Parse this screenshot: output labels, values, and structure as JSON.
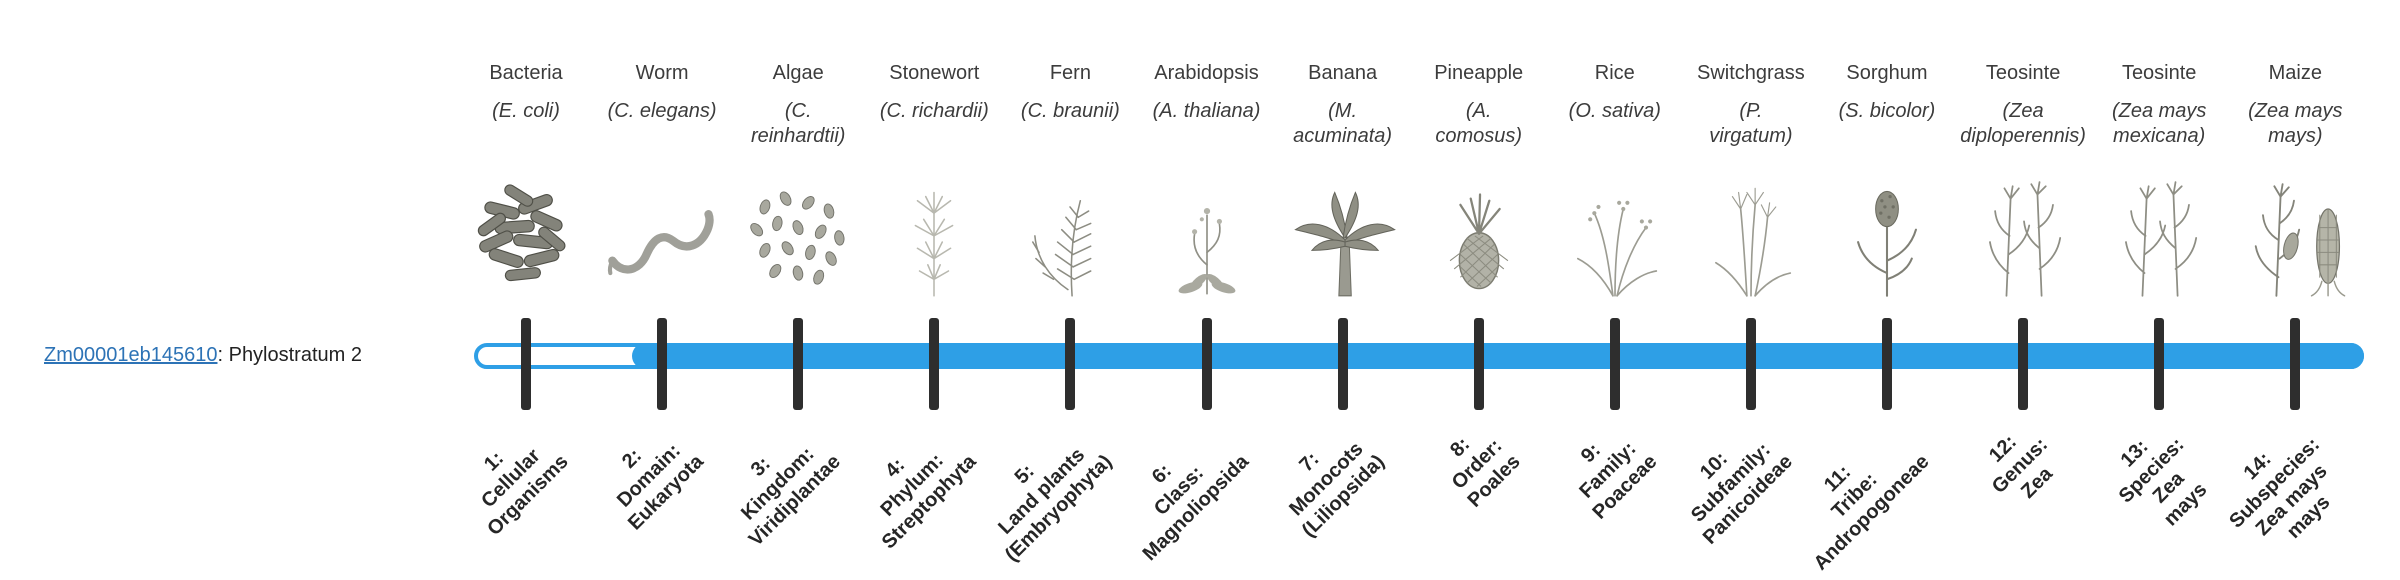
{
  "gene": {
    "id": "Zm00001eb145610",
    "suffix": ": Phylostratum 2",
    "phylostratum": 2
  },
  "timeline": {
    "bar_color": "#2E9FE6",
    "tick_color": "#2e2e2e",
    "filled_from_stratum": 2,
    "strata": [
      {
        "index": 1,
        "common_name": "Bacteria",
        "latin_name": "(E. coli)",
        "icon": "bacteria-icon",
        "stratum_label": "1:\nCellular\nOrganisms"
      },
      {
        "index": 2,
        "common_name": "Worm",
        "latin_name": "(C. elegans)",
        "icon": "worm-icon",
        "stratum_label": "2:\nDomain:\nEukaryota"
      },
      {
        "index": 3,
        "common_name": "Algae",
        "latin_name": "(C.\nreinhardtii)",
        "icon": "algae-icon",
        "stratum_label": "3:\nKingdom:\nViridiplantae"
      },
      {
        "index": 4,
        "common_name": "Stonewort",
        "latin_name": "(C. richardii)",
        "icon": "stonewort-icon",
        "stratum_label": "4:\nPhylum:\nStreptophyta"
      },
      {
        "index": 5,
        "common_name": "Fern",
        "latin_name": "(C. braunii)",
        "icon": "fern-icon",
        "stratum_label": "5:\nLand plants\n(Embryophyta)"
      },
      {
        "index": 6,
        "common_name": "Arabidopsis",
        "latin_name": "(A. thaliana)",
        "icon": "arabidopsis-icon",
        "stratum_label": "6:\nClass:\nMagnoliopsida"
      },
      {
        "index": 7,
        "common_name": "Banana",
        "latin_name": "(M.\nacuminata)",
        "icon": "banana-icon",
        "stratum_label": "7:\nMonocots\n(Liliopsida)"
      },
      {
        "index": 8,
        "common_name": "Pineapple",
        "latin_name": "(A.\ncomosus)",
        "icon": "pineapple-icon",
        "stratum_label": "8:\nOrder:\nPoales"
      },
      {
        "index": 9,
        "common_name": "Rice",
        "latin_name": "(O. sativa)",
        "icon": "rice-icon",
        "stratum_label": "9:\nFamily:\nPoaceae"
      },
      {
        "index": 10,
        "common_name": "Switchgrass",
        "latin_name": "(P.\nvirgatum)",
        "icon": "switchgrass-icon",
        "stratum_label": "10:\nSubfamily:\nPanicoideae"
      },
      {
        "index": 11,
        "common_name": "Sorghum",
        "latin_name": "(S. bicolor)",
        "icon": "sorghum-icon",
        "stratum_label": "11:\nTribe:\nAndropogoneae"
      },
      {
        "index": 12,
        "common_name": "Teosinte",
        "latin_name": "(Zea\ndiploperennis)",
        "icon": "teosinte-icon",
        "stratum_label": "12:\nGenus:\nZea"
      },
      {
        "index": 13,
        "common_name": "Teosinte",
        "latin_name": "(Zea mays\nmexicana)",
        "icon": "teosinte-icon",
        "stratum_label": "13:\nSpecies:\nZea\nmays"
      },
      {
        "index": 14,
        "common_name": "Maize",
        "latin_name": "(Zea mays\nmays)",
        "icon": "maize-icon",
        "stratum_label": "14:\nSubspecies:\nZea mays\nmays"
      }
    ]
  }
}
